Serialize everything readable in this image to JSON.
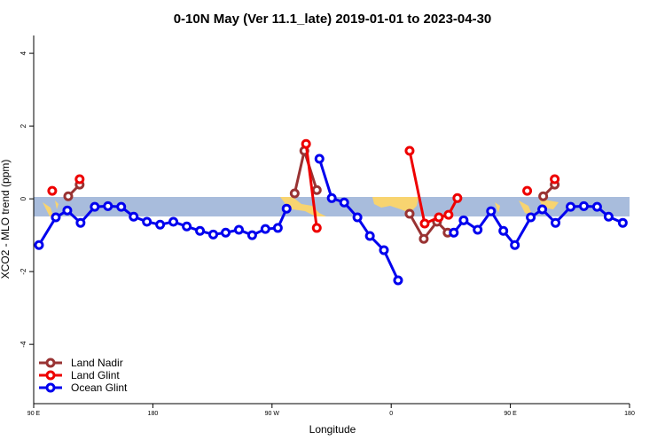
{
  "chart_data": {
    "type": "line",
    "title": "0-10N May (Ver 11.1_late)   2019-01-01 to 2023-04-30",
    "xlabel": "Longitude",
    "ylabel": "XCO2 - MLO trend (ppm)",
    "xlim": [
      90,
      540
    ],
    "xticks": [
      {
        "value": 90,
        "label": "90 E"
      },
      180,
      {
        "value": 270,
        "label": "90 W"
      },
      {
        "value": 360,
        "label": "0"
      },
      {
        "value": 450,
        "label": "90 E"
      },
      {
        "value": 540,
        "label": "180"
      }
    ],
    "ylim": [
      -5.63,
      4.49
    ],
    "yticks": [
      -4,
      -2,
      0,
      2,
      4
    ],
    "legend": "bottom-left",
    "series": [
      {
        "name": "Land Nadir",
        "color": "#993333",
        "x": [
          116.1,
          124.7,
          null,
          287.1,
          294.4,
          303.8,
          null,
          373.9,
          384.6,
          394.6,
          402.6,
          null,
          474.8,
          483.5
        ],
        "values": [
          0.07,
          0.39,
          null,
          0.15,
          1.32,
          0.24,
          null,
          -0.41,
          -1.1,
          -0.63,
          -0.93,
          null,
          0.07,
          0.39
        ]
      },
      {
        "name": "Land Glint",
        "color": "#ee0000",
        "x": [
          104.0,
          null,
          124.7,
          null,
          295.7,
          303.8,
          null,
          373.9,
          385.3,
          396.0,
          403.3,
          410.0,
          null,
          462.7,
          null,
          483.5
        ],
        "values": [
          0.22,
          null,
          0.54,
          null,
          1.51,
          -0.8,
          null,
          1.32,
          -0.68,
          -0.51,
          -0.44,
          0.02,
          null,
          0.22,
          null,
          0.54
        ]
      },
      {
        "name": "Ocean Glint",
        "color": "#0000ee",
        "x": [
          94.0,
          106.7,
          115.4,
          125.4,
          136.1,
          146.1,
          156.1,
          165.5,
          175.5,
          185.5,
          195.5,
          205.6,
          215.6,
          225.6,
          235.0,
          245.0,
          255.0,
          265.0,
          274.4,
          281.0,
          null,
          305.8,
          315.1,
          324.5,
          334.5,
          343.9,
          354.5,
          365.2,
          null,
          407.3,
          414.7,
          425.3,
          435.4,
          444.7,
          453.4,
          465.4,
          474.1,
          484.1,
          495.5,
          505.5,
          515.5,
          524.2,
          534.9
        ],
        "values": [
          -1.27,
          -0.51,
          -0.32,
          -0.66,
          -0.22,
          -0.2,
          -0.22,
          -0.49,
          -0.63,
          -0.71,
          -0.63,
          -0.76,
          -0.88,
          -0.98,
          -0.93,
          -0.85,
          -1.0,
          -0.83,
          -0.8,
          -0.27,
          null,
          1.1,
          0.02,
          -0.1,
          -0.51,
          -1.02,
          -1.41,
          -2.24,
          null,
          -0.93,
          -0.59,
          -0.85,
          -0.34,
          -0.88,
          -1.27,
          -0.51,
          -0.29,
          -0.66,
          -0.22,
          -0.2,
          -0.22,
          -0.49,
          -0.66
        ]
      }
    ]
  }
}
